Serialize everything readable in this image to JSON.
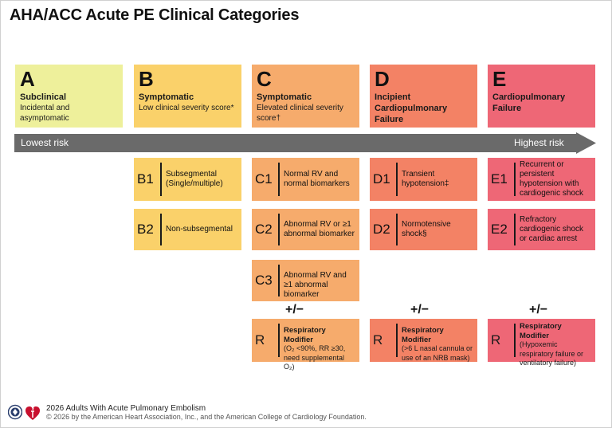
{
  "title": "AHA/ACC Acute PE Clinical Categories",
  "colors": {
    "A": "#eef09b",
    "B": "#fad16a",
    "C": "#f6ab6c",
    "D": "#f38265",
    "E": "#ee6776",
    "arrow": "#6a6a6a"
  },
  "categories": [
    {
      "letter": "A",
      "name": "Subclinical",
      "desc": "Incidental and asymptomatic"
    },
    {
      "letter": "B",
      "name": "Symptomatic",
      "desc": "Low clinical severity score*"
    },
    {
      "letter": "C",
      "name": "Symptomatic",
      "desc": "Elevated clinical severity score†"
    },
    {
      "letter": "D",
      "name": "Incipient Cardiopulmonary Failure",
      "desc": ""
    },
    {
      "letter": "E",
      "name": "Cardiopulmonary Failure",
      "desc": ""
    }
  ],
  "risk_arrow": {
    "low": "Lowest risk",
    "high": "Highest risk"
  },
  "subcategories": {
    "B1": "Subsegmental (Single/multiple)",
    "B2": "Non-subsegmental",
    "C1": "Normal RV and normal biomarkers",
    "C2": "Abnormal RV or ≥1 abnormal biomarker",
    "C3": "Abnormal RV and ≥1 abnormal biomarker",
    "D1": "Transient hypotension‡",
    "D2": "Normotensive shock§",
    "E1": "Recurrent or persistent hypotension with cardiogenic shock",
    "E2": "Refractory cardiogenic shock or cardiac arrest"
  },
  "plus_minus": "+/−",
  "respiratory_modifier": {
    "label": "R",
    "title": "Respiratory Modifier",
    "C": "(O₂ <90%, RR ≥30, need supplemental O₂)",
    "D": "(>6 L nasal cannula or use of an NRB mask)",
    "E": "(Hypoxemic respiratory failure or ventilatory failure)"
  },
  "footer": {
    "title": "2026 Adults With Acute Pulmonary Embolism",
    "copyright": "© 2026 by the American Heart Association, Inc., and the American College of Cardiology Foundation."
  }
}
